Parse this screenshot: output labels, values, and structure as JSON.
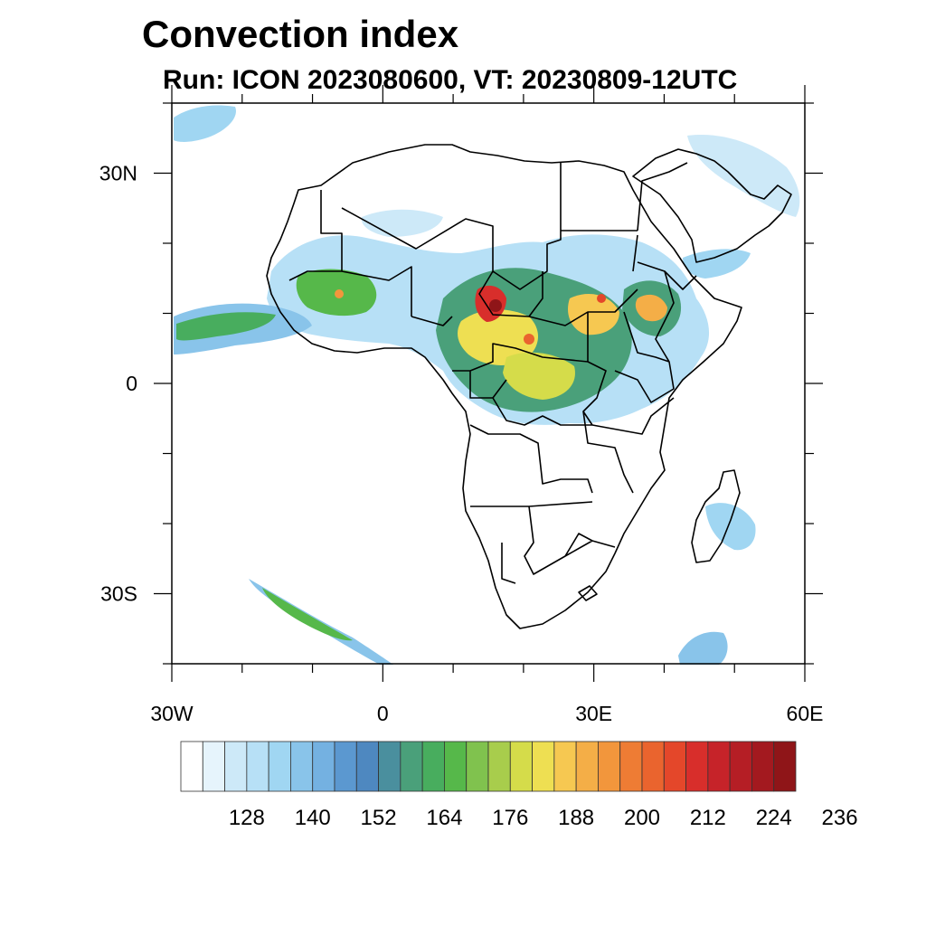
{
  "header": {
    "title": "Convection index",
    "subtitle": "Run: ICON 2023080600,  VT: 20230809-12UTC"
  },
  "map": {
    "region": "Africa",
    "projection": "cylindrical equidistant",
    "lon_range": [
      -30,
      60
    ],
    "lat_range": [
      -40,
      40
    ],
    "lon_ticks": [
      {
        "value": -30,
        "label": "30W"
      },
      {
        "value": 0,
        "label": "0"
      },
      {
        "value": 30,
        "label": "30E"
      },
      {
        "value": 60,
        "label": "60E"
      }
    ],
    "lat_ticks": [
      {
        "value": 30,
        "label": "30N"
      },
      {
        "value": 0,
        "label": "0"
      },
      {
        "value": -30,
        "label": "30S"
      }
    ]
  },
  "colorbar": {
    "labels": [
      "128",
      "140",
      "152",
      "164",
      "176",
      "188",
      "200",
      "212",
      "224",
      "236"
    ],
    "colors": [
      "#ffffff",
      "#e6f4fc",
      "#cde9f8",
      "#b7e0f6",
      "#a0d6f2",
      "#89c4ea",
      "#74b1e1",
      "#5b98d0",
      "#4e88c0",
      "#4a8f9e",
      "#4aa07a",
      "#48ad5e",
      "#56b84a",
      "#80c24e",
      "#a8cd4c",
      "#d5dc4a",
      "#eedf52",
      "#f6c851",
      "#f4ae47",
      "#f2963c",
      "#ee7c34",
      "#ea642e",
      "#e4472a",
      "#d82e2b",
      "#c62329",
      "#b51e25",
      "#a3191f",
      "#8f1518"
    ]
  }
}
